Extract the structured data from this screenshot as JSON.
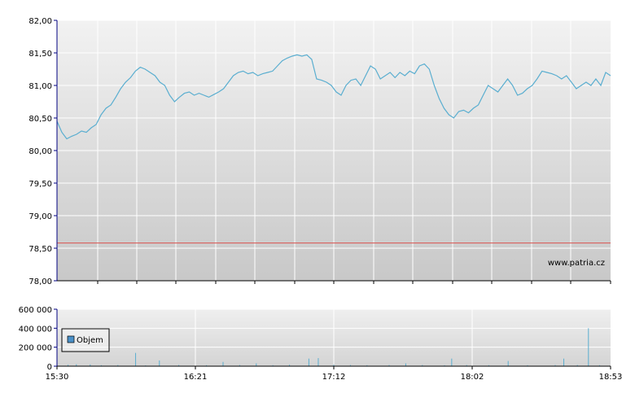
{
  "watermark": "www.patria.cz",
  "colors": {
    "price_line": "#5aaed0",
    "reference_line": "#d9534f",
    "volume_bar": "#5aaed0",
    "grid": "#ffffff",
    "axis": "#000080",
    "legend_swatch": "#4a90c8"
  },
  "chart_data": [
    {
      "type": "line",
      "name": "price",
      "ylim": [
        78.0,
        82.0
      ],
      "yticks": [
        "82,00",
        "81,50",
        "81,00",
        "80,50",
        "80,00",
        "79,50",
        "79,00",
        "78,50",
        "78,00"
      ],
      "ytick_values": [
        82.0,
        81.5,
        81.0,
        80.5,
        80.0,
        79.5,
        79.0,
        78.5,
        78.0
      ],
      "reference_value": 78.58,
      "grid": true,
      "series": [
        {
          "values": [
            80.45,
            80.28,
            80.18,
            80.22,
            80.25,
            80.3,
            80.28,
            80.35,
            80.4,
            80.55,
            80.65,
            80.7,
            80.82,
            80.95,
            81.05,
            81.12,
            81.22,
            81.28,
            81.25,
            81.2,
            81.15,
            81.05,
            81.0,
            80.85,
            80.75,
            80.82,
            80.88,
            80.9,
            80.85,
            80.88,
            80.85,
            80.82,
            80.86,
            80.9,
            80.95,
            81.05,
            81.15,
            81.2,
            81.22,
            81.18,
            81.2,
            81.15,
            81.18,
            81.2,
            81.22,
            81.3,
            81.38,
            81.42,
            81.45,
            81.47,
            81.45,
            81.47,
            81.4,
            81.1,
            81.08,
            81.05,
            81.0,
            80.9,
            80.85,
            81.0,
            81.08,
            81.1,
            81.0,
            81.15,
            81.3,
            81.25,
            81.1,
            81.15,
            81.2,
            81.12,
            81.2,
            81.15,
            81.22,
            81.18,
            81.3,
            81.33,
            81.25,
            81.0,
            80.8,
            80.65,
            80.55,
            80.5,
            80.6,
            80.62,
            80.58,
            80.65,
            80.7,
            80.85,
            81.0,
            80.95,
            80.9,
            81.0,
            81.1,
            81.0,
            80.85,
            80.88,
            80.95,
            81.0,
            81.1,
            81.22,
            81.2,
            81.18,
            81.15,
            81.1,
            81.15,
            81.05,
            80.95,
            81.0,
            81.05,
            81.0,
            81.1,
            81.0,
            81.2,
            81.15
          ]
        }
      ]
    },
    {
      "type": "bar",
      "name": "volume",
      "ylim": [
        0,
        600000
      ],
      "yticks": [
        "600 000",
        "400 000",
        "200 000",
        "0"
      ],
      "ytick_values": [
        600000,
        400000,
        200000,
        0
      ],
      "xticks": [
        "15:30",
        "16:21",
        "17:12",
        "18:02",
        "18:53"
      ],
      "legend": "Objem",
      "legend_placement": "left",
      "grid": true,
      "bars": [
        {
          "x": 0.0,
          "v": 25000
        },
        {
          "x": 0.02,
          "v": 15000
        },
        {
          "x": 0.035,
          "v": 20000
        },
        {
          "x": 0.06,
          "v": 18000
        },
        {
          "x": 0.08,
          "v": 10000
        },
        {
          "x": 0.11,
          "v": 12000
        },
        {
          "x": 0.142,
          "v": 140000
        },
        {
          "x": 0.16,
          "v": 8000
        },
        {
          "x": 0.185,
          "v": 60000
        },
        {
          "x": 0.22,
          "v": 12000
        },
        {
          "x": 0.27,
          "v": 10000
        },
        {
          "x": 0.3,
          "v": 45000
        },
        {
          "x": 0.33,
          "v": 12000
        },
        {
          "x": 0.36,
          "v": 30000
        },
        {
          "x": 0.39,
          "v": 10000
        },
        {
          "x": 0.42,
          "v": 15000
        },
        {
          "x": 0.455,
          "v": 80000
        },
        {
          "x": 0.472,
          "v": 85000
        },
        {
          "x": 0.5,
          "v": 15000
        },
        {
          "x": 0.53,
          "v": 12000
        },
        {
          "x": 0.56,
          "v": 10000
        },
        {
          "x": 0.6,
          "v": 12000
        },
        {
          "x": 0.63,
          "v": 30000
        },
        {
          "x": 0.66,
          "v": 12000
        },
        {
          "x": 0.7,
          "v": 10000
        },
        {
          "x": 0.713,
          "v": 80000
        },
        {
          "x": 0.74,
          "v": 12000
        },
        {
          "x": 0.78,
          "v": 10000
        },
        {
          "x": 0.815,
          "v": 55000
        },
        {
          "x": 0.85,
          "v": 10000
        },
        {
          "x": 0.9,
          "v": 12000
        },
        {
          "x": 0.9155,
          "v": 80000
        },
        {
          "x": 0.94,
          "v": 12000
        },
        {
          "x": 0.96,
          "v": 400000
        },
        {
          "x": 0.98,
          "v": 10000
        }
      ]
    }
  ]
}
